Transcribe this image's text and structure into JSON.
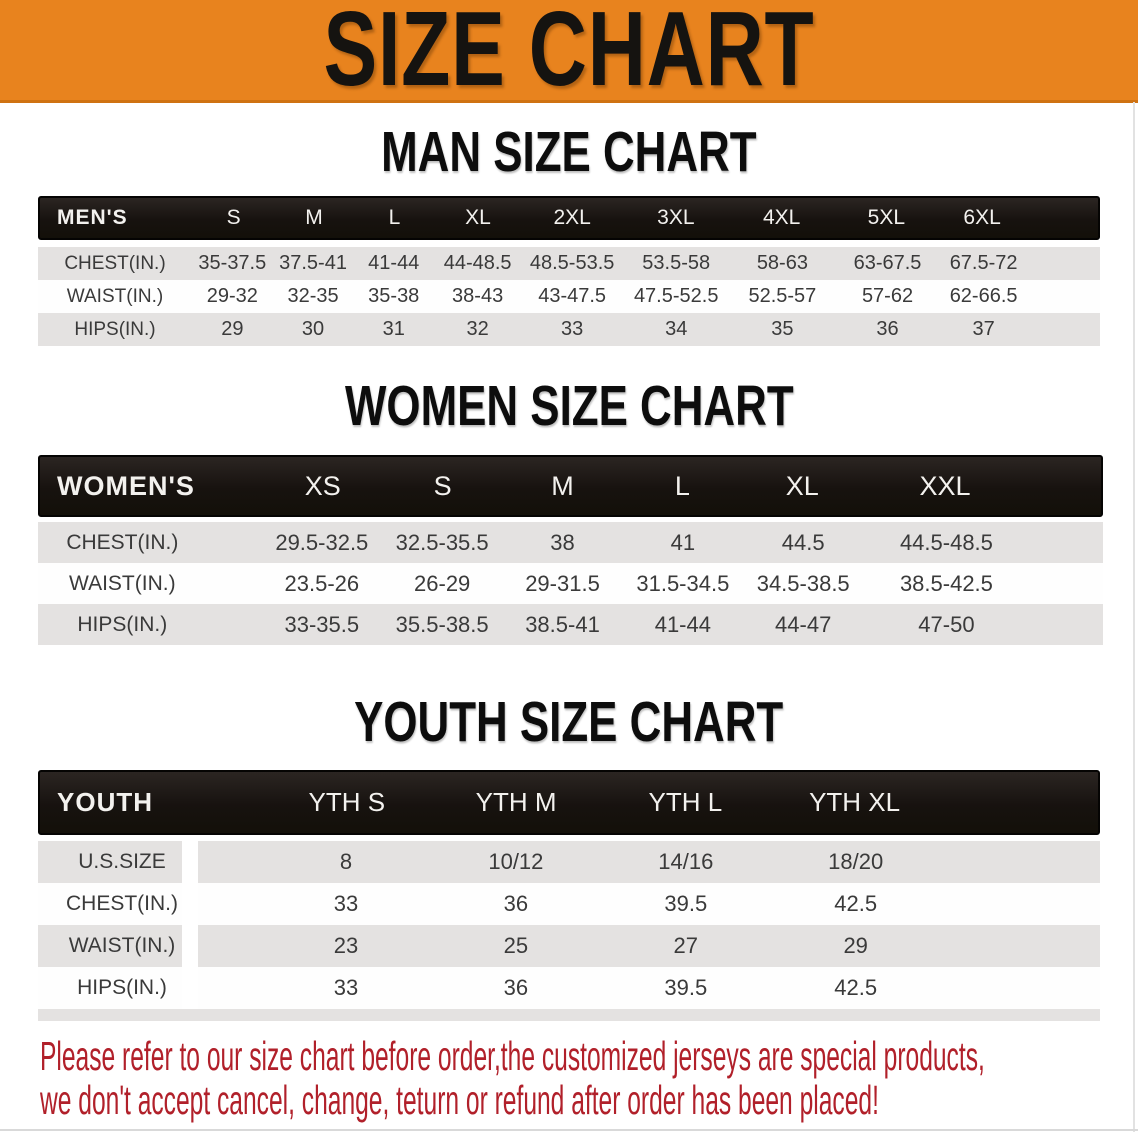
{
  "banner": {
    "title": "SIZE CHART",
    "bg_color": "#E8831E",
    "text_color": "#151310"
  },
  "sections": [
    {
      "heading": "MAN SIZE CHART",
      "table": {
        "label": "MEN'S",
        "columns": [
          "S",
          "M",
          "L",
          "XL",
          "2XL",
          "3XL",
          "4XL",
          "5XL",
          "6XL"
        ],
        "rows": [
          {
            "label": "CHEST(IN.)",
            "values": [
              "35-37.5",
              "37.5-41",
              "41-44",
              "44-48.5",
              "48.5-53.5",
              "53.5-58",
              "58-63",
              "63-67.5",
              "67.5-72"
            ]
          },
          {
            "label": "WAIST(IN.)",
            "values": [
              "29-32",
              "32-35",
              "35-38",
              "38-43",
              "43-47.5",
              "47.5-52.5",
              "52.5-57",
              "57-62",
              "62-66.5"
            ]
          },
          {
            "label": "HIPS(IN.)",
            "values": [
              "29",
              "30",
              "31",
              "32",
              "33",
              "34",
              "35",
              "36",
              "37"
            ]
          }
        ]
      }
    },
    {
      "heading": "WOMEN SIZE CHART",
      "table": {
        "label": "WOMEN'S",
        "columns": [
          "XS",
          "S",
          "M",
          "L",
          "XL",
          "XXL"
        ],
        "rows": [
          {
            "label": "CHEST(IN.)",
            "values": [
              "29.5-32.5",
              "32.5-35.5",
              "38",
              "41",
              "44.5",
              "44.5-48.5"
            ]
          },
          {
            "label": "WAIST(IN.)",
            "values": [
              "23.5-26",
              "26-29",
              "29-31.5",
              "31.5-34.5",
              "34.5-38.5",
              "38.5-42.5"
            ]
          },
          {
            "label": "HIPS(IN.)",
            "values": [
              "33-35.5",
              "35.5-38.5",
              "38.5-41",
              "41-44",
              "44-47",
              "47-50"
            ]
          }
        ]
      }
    },
    {
      "heading": "YOUTH SIZE CHART",
      "table": {
        "label": "YOUTH",
        "columns": [
          "YTH S",
          "YTH M",
          "YTH L",
          "YTH XL"
        ],
        "rows": [
          {
            "label": "U.S.SIZE",
            "values": [
              "8",
              "10/12",
              "14/16",
              "18/20"
            ]
          },
          {
            "label": "CHEST(IN.)",
            "values": [
              "33",
              "36",
              "39.5",
              "42.5"
            ]
          },
          {
            "label": "WAIST(IN.)",
            "values": [
              "23",
              "25",
              "27",
              "29"
            ]
          },
          {
            "label": "HIPS(IN.)",
            "values": [
              "33",
              "36",
              "39.5",
              "42.5"
            ]
          }
        ]
      }
    }
  ],
  "footer": {
    "lines": [
      "Please refer to our size chart before order,the customized jerseys are special products,",
      "we don't accept cancel, change, teturn or refund after order has been placed!"
    ],
    "text_color": "#B1202A"
  },
  "colors": {
    "header_bar": "#17120F",
    "row_stripe": "#E4E2E1",
    "row_white": "#FEFEFE",
    "value_text": "#3A3A3A"
  }
}
